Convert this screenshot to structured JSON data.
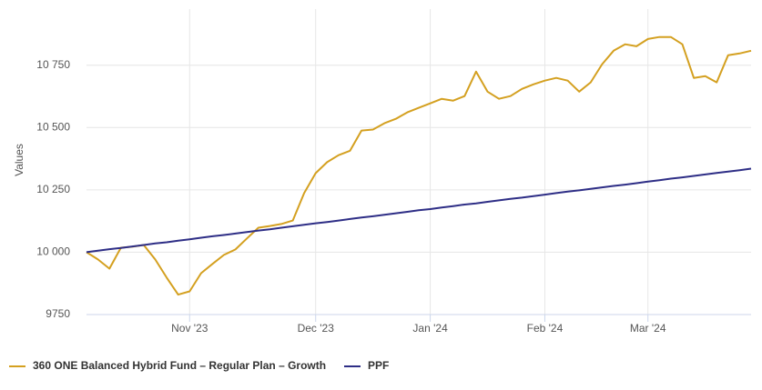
{
  "chart_data": {
    "type": "line",
    "y_label": "Values",
    "categories": [
      null,
      null,
      null,
      null,
      null,
      null,
      null,
      null,
      null,
      "Nov '23",
      null,
      null,
      null,
      null,
      null,
      null,
      null,
      null,
      null,
      null,
      "Dec '23",
      null,
      null,
      null,
      null,
      null,
      null,
      null,
      null,
      null,
      "Jan '24",
      null,
      null,
      null,
      null,
      null,
      null,
      null,
      null,
      null,
      "Feb '24",
      null,
      null,
      null,
      null,
      null,
      null,
      null,
      null,
      "Mar '24",
      null,
      null,
      null,
      null,
      null,
      null,
      null,
      null,
      null
    ],
    "series": [
      {
        "name": "360 ONE Balanced Hybrid Fund – Regular Plan – Growth",
        "color": "#d4a020",
        "values": [
          10000,
          9971,
          9934,
          10018,
          10022,
          10029,
          9971,
          9898,
          9830,
          9843,
          9916,
          9953,
          9989,
          10011,
          10055,
          10098,
          10105,
          10113,
          10127,
          10237,
          10317,
          10361,
          10389,
          10407,
          10488,
          10492,
          10517,
          10535,
          10561,
          10579,
          10597,
          10615,
          10608,
          10626,
          10724,
          10644,
          10615,
          10626,
          10655,
          10673,
          10688,
          10699,
          10688,
          10644,
          10681,
          10754,
          10808,
          10834,
          10826,
          10855,
          10863,
          10863,
          10834,
          10699,
          10706,
          10681,
          10790,
          10797,
          10808
        ]
      },
      {
        "name": "PPF",
        "color": "#2e2e86",
        "values": [
          10000,
          10006,
          10012,
          10017,
          10023,
          10029,
          10035,
          10040,
          10046,
          10052,
          10058,
          10064,
          10069,
          10075,
          10081,
          10087,
          10092,
          10098,
          10104,
          10110,
          10116,
          10121,
          10127,
          10133,
          10139,
          10144,
          10150,
          10156,
          10162,
          10168,
          10173,
          10179,
          10185,
          10191,
          10196,
          10202,
          10208,
          10214,
          10219,
          10225,
          10231,
          10237,
          10243,
          10248,
          10254,
          10260,
          10266,
          10271,
          10277,
          10283,
          10289,
          10295,
          10300,
          10306,
          10312,
          10318,
          10323,
          10329,
          10335
        ]
      }
    ],
    "ylim": [
      9750,
      10975
    ],
    "yticks": [
      9750,
      {
        "value": 10000,
        "label": "10 000"
      },
      {
        "value": 10250,
        "label": "10 250"
      },
      {
        "value": 10500,
        "label": "10 500"
      },
      {
        "value": 10750,
        "label": "10 750"
      }
    ],
    "grid": true
  }
}
